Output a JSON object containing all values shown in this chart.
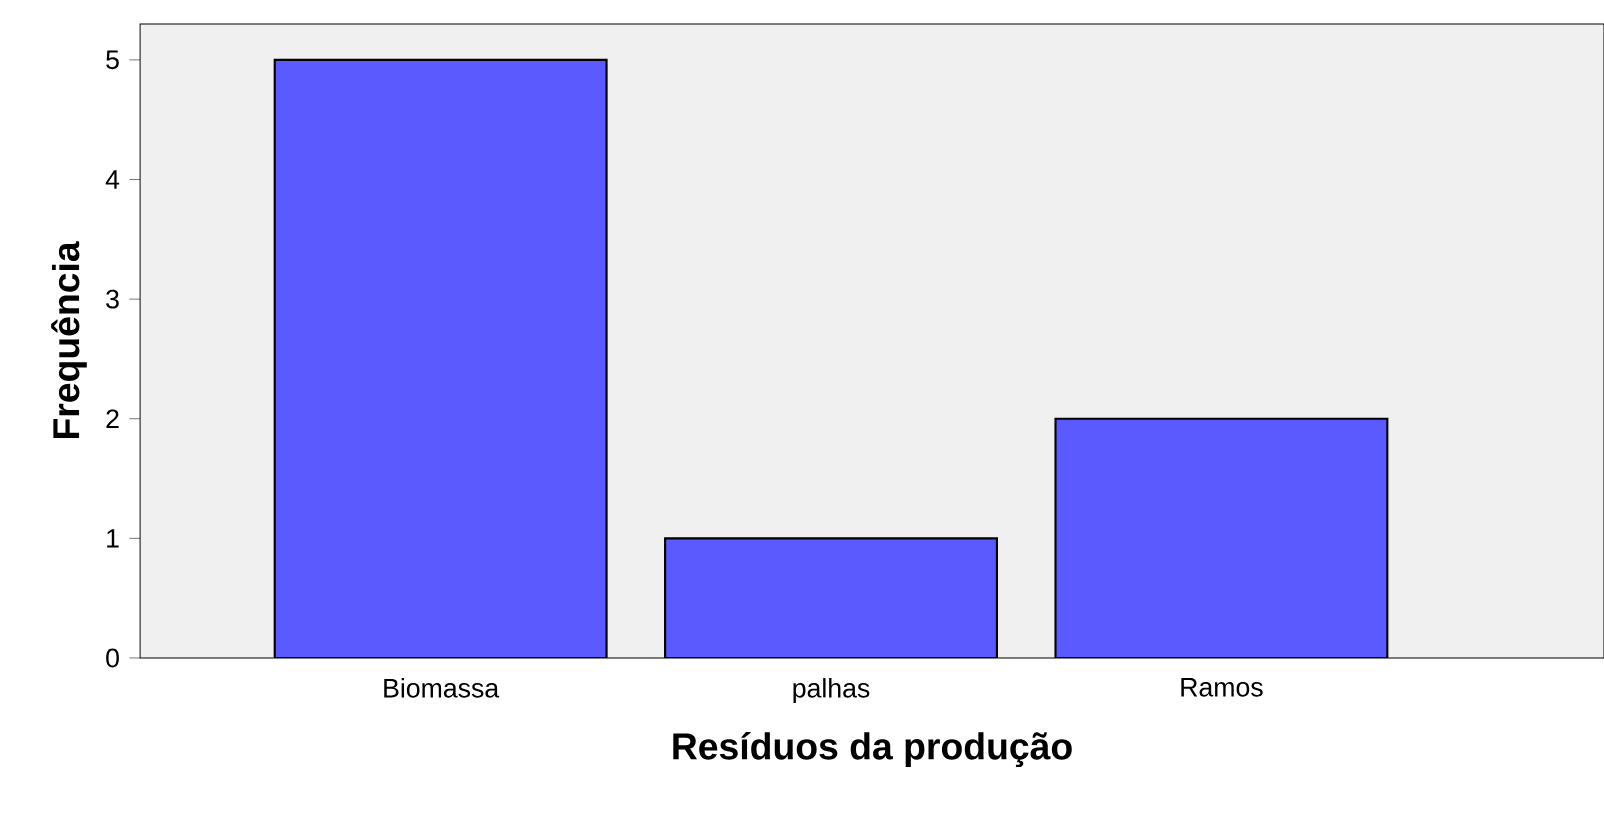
{
  "chart_data": {
    "type": "bar",
    "xlabel": "Resíduos da produção",
    "ylabel": "Frequência",
    "categories": [
      "Biomassa",
      "palhas",
      "Ramos"
    ],
    "values": [
      5,
      1,
      2
    ],
    "color": "#5a5aff",
    "ylim": [
      0,
      5.3
    ],
    "yticks": [
      0,
      1,
      2,
      3,
      4,
      5
    ]
  }
}
